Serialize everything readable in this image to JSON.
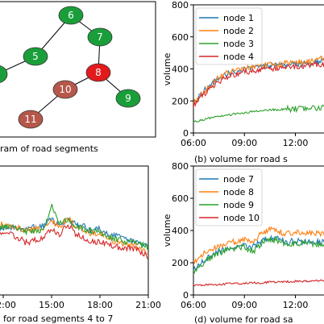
{
  "panel_a": {
    "caption": "ram of road segments",
    "nodes": [
      {
        "label": "6",
        "color": "#1a9e3a"
      },
      {
        "label": "7",
        "color": "#1a9e3a"
      },
      {
        "label": "5",
        "color": "#1a9e3a"
      },
      {
        "label": "8",
        "color": "#e31a1c"
      },
      {
        "label": "10",
        "color": "#b5574a"
      },
      {
        "label": "9",
        "color": "#1a9e3a"
      },
      {
        "label": "11",
        "color": "#b5574a"
      },
      {
        "label": "",
        "color": "#1a9e3a"
      }
    ]
  },
  "chart_data": [
    {
      "type": "line",
      "panel": "b",
      "caption": "(b) volume for road s",
      "ylabel": "volume",
      "ylim": [
        0,
        800
      ],
      "yticks": [
        "0",
        "200",
        "400",
        "600",
        "800"
      ],
      "xticks": [
        "06:00",
        "09:00",
        "12:00"
      ],
      "xlim_hours": [
        6,
        14.3
      ],
      "legend": "top-left",
      "series": [
        {
          "name": "node 1",
          "color": "#1f77b4",
          "points": [
            [
              6.0,
              190
            ],
            [
              6.5,
              250
            ],
            [
              7.0,
              300
            ],
            [
              7.5,
              340
            ],
            [
              8.0,
              370
            ],
            [
              8.5,
              385
            ],
            [
              9.0,
              395
            ],
            [
              9.5,
              405
            ],
            [
              10.0,
              410
            ],
            [
              10.5,
              420
            ],
            [
              11.0,
              425
            ],
            [
              11.5,
              430
            ],
            [
              12.0,
              430
            ],
            [
              12.5,
              435
            ],
            [
              13.0,
              440
            ],
            [
              13.5,
              450
            ],
            [
              14.0,
              455
            ]
          ]
        },
        {
          "name": "node 2",
          "color": "#ff7f0e",
          "points": [
            [
              6.0,
              185
            ],
            [
              6.5,
              245
            ],
            [
              7.0,
              295
            ],
            [
              7.5,
              345
            ],
            [
              8.0,
              375
            ],
            [
              8.5,
              395
            ],
            [
              9.0,
              405
            ],
            [
              9.5,
              415
            ],
            [
              10.0,
              420
            ],
            [
              10.5,
              425
            ],
            [
              11.0,
              430
            ],
            [
              11.5,
              440
            ],
            [
              12.0,
              445
            ],
            [
              12.5,
              440
            ],
            [
              13.0,
              450
            ],
            [
              13.5,
              465
            ],
            [
              14.0,
              480
            ]
          ]
        },
        {
          "name": "node 3",
          "color": "#2ca02c",
          "points": [
            [
              6.0,
              70
            ],
            [
              6.5,
              80
            ],
            [
              7.0,
              95
            ],
            [
              7.5,
              105
            ],
            [
              8.0,
              110
            ],
            [
              8.5,
              120
            ],
            [
              9.0,
              125
            ],
            [
              9.5,
              135
            ],
            [
              10.0,
              140
            ],
            [
              10.5,
              145
            ],
            [
              11.0,
              145
            ],
            [
              11.5,
              150
            ],
            [
              12.0,
              150
            ],
            [
              12.5,
              155
            ],
            [
              13.0,
              155
            ],
            [
              13.5,
              160
            ],
            [
              14.0,
              160
            ]
          ]
        },
        {
          "name": "node 4",
          "color": "#d62728",
          "points": [
            [
              6.0,
              170
            ],
            [
              6.5,
              230
            ],
            [
              7.0,
              280
            ],
            [
              7.5,
              320
            ],
            [
              8.0,
              350
            ],
            [
              8.5,
              370
            ],
            [
              9.0,
              380
            ],
            [
              9.5,
              390
            ],
            [
              10.0,
              395
            ],
            [
              10.5,
              400
            ],
            [
              11.0,
              405
            ],
            [
              11.5,
              410
            ],
            [
              12.0,
              410
            ],
            [
              12.5,
              415
            ],
            [
              13.0,
              420
            ],
            [
              13.5,
              430
            ],
            [
              14.0,
              440
            ]
          ]
        }
      ]
    },
    {
      "type": "line",
      "panel": "c",
      "caption": "for road segments 4 to 7",
      "xticks": [
        "12:00",
        "15:00",
        "18:00",
        "21:00"
      ],
      "xlim_hours": [
        11.7,
        21
      ],
      "ylim": [
        0,
        800
      ],
      "series": [
        {
          "name": "",
          "color": "#1f77b4",
          "points": [
            [
              11.7,
              420
            ],
            [
              12.5,
              420
            ],
            [
              13.5,
              410
            ],
            [
              14.5,
              430
            ],
            [
              15.0,
              470
            ],
            [
              15.5,
              430
            ],
            [
              16.0,
              470
            ],
            [
              16.5,
              440
            ],
            [
              17.0,
              430
            ],
            [
              17.5,
              400
            ],
            [
              18.0,
              410
            ],
            [
              18.5,
              380
            ],
            [
              19.0,
              370
            ],
            [
              19.5,
              350
            ],
            [
              20.0,
              340
            ],
            [
              20.5,
              320
            ],
            [
              21.0,
              300
            ]
          ]
        },
        {
          "name": "",
          "color": "#ff7f0e",
          "points": [
            [
              11.7,
              440
            ],
            [
              12.5,
              430
            ],
            [
              13.5,
              400
            ],
            [
              14.5,
              420
            ],
            [
              15.0,
              460
            ],
            [
              15.5,
              420
            ],
            [
              16.0,
              480
            ],
            [
              16.5,
              420
            ],
            [
              17.0,
              400
            ],
            [
              17.5,
              380
            ],
            [
              18.0,
              380
            ],
            [
              18.5,
              350
            ],
            [
              19.0,
              330
            ],
            [
              19.5,
              320
            ],
            [
              20.0,
              310
            ],
            [
              20.5,
              290
            ],
            [
              21.0,
              260
            ]
          ]
        },
        {
          "name": "",
          "color": "#2ca02c",
          "points": [
            [
              11.7,
              430
            ],
            [
              12.5,
              420
            ],
            [
              13.5,
              390
            ],
            [
              14.5,
              400
            ],
            [
              15.0,
              560
            ],
            [
              15.5,
              440
            ],
            [
              16.0,
              470
            ],
            [
              16.5,
              430
            ],
            [
              17.0,
              410
            ],
            [
              17.5,
              400
            ],
            [
              18.0,
              390
            ],
            [
              18.5,
              360
            ],
            [
              19.0,
              350
            ],
            [
              19.5,
              330
            ],
            [
              20.0,
              330
            ],
            [
              20.5,
              310
            ],
            [
              21.0,
              300
            ]
          ]
        },
        {
          "name": "",
          "color": "#d62728",
          "points": [
            [
              11.7,
              390
            ],
            [
              12.5,
              380
            ],
            [
              13.5,
              320
            ],
            [
              14.5,
              360
            ],
            [
              15.0,
              400
            ],
            [
              15.5,
              380
            ],
            [
              16.0,
              440
            ],
            [
              16.5,
              380
            ],
            [
              17.0,
              350
            ],
            [
              17.5,
              330
            ],
            [
              18.0,
              330
            ],
            [
              18.5,
              310
            ],
            [
              19.0,
              300
            ],
            [
              19.5,
              290
            ],
            [
              20.0,
              290
            ],
            [
              20.5,
              270
            ],
            [
              21.0,
              240
            ]
          ]
        }
      ]
    },
    {
      "type": "line",
      "panel": "d",
      "caption": "(d) volume for road sa",
      "ylabel": "volume",
      "ylim": [
        0,
        800
      ],
      "yticks": [
        "0",
        "200",
        "400",
        "600",
        "800"
      ],
      "xticks": [
        "06:00",
        "09:00",
        "12:00"
      ],
      "xlim_hours": [
        6,
        14.3
      ],
      "legend": "top-left",
      "series": [
        {
          "name": "node 7",
          "color": "#1f77b4",
          "points": [
            [
              6.0,
              160
            ],
            [
              6.5,
              200
            ],
            [
              7.0,
              240
            ],
            [
              7.5,
              270
            ],
            [
              8.0,
              290
            ],
            [
              8.5,
              300
            ],
            [
              9.0,
              310
            ],
            [
              9.5,
              300
            ],
            [
              10.0,
              330
            ],
            [
              10.5,
              360
            ],
            [
              11.0,
              345
            ],
            [
              11.5,
              330
            ],
            [
              12.0,
              335
            ],
            [
              12.5,
              330
            ],
            [
              13.0,
              330
            ],
            [
              13.5,
              330
            ],
            [
              14.0,
              330
            ]
          ]
        },
        {
          "name": "node 8",
          "color": "#ff7f0e",
          "points": [
            [
              6.0,
              200
            ],
            [
              6.5,
              250
            ],
            [
              7.0,
              280
            ],
            [
              7.5,
              300
            ],
            [
              8.0,
              320
            ],
            [
              8.5,
              330
            ],
            [
              9.0,
              340
            ],
            [
              9.5,
              340
            ],
            [
              10.0,
              380
            ],
            [
              10.5,
              410
            ],
            [
              11.0,
              390
            ],
            [
              11.5,
              380
            ],
            [
              12.0,
              390
            ],
            [
              12.5,
              380
            ],
            [
              13.0,
              380
            ],
            [
              13.5,
              380
            ],
            [
              14.0,
              385
            ]
          ]
        },
        {
          "name": "node 9",
          "color": "#2ca02c",
          "points": [
            [
              6.0,
              150
            ],
            [
              6.5,
              190
            ],
            [
              7.0,
              230
            ],
            [
              7.5,
              260
            ],
            [
              8.0,
              280
            ],
            [
              8.5,
              290
            ],
            [
              9.0,
              300
            ],
            [
              9.5,
              270
            ],
            [
              10.0,
              320
            ],
            [
              10.5,
              350
            ],
            [
              11.0,
              330
            ],
            [
              11.5,
              320
            ],
            [
              12.0,
              320
            ],
            [
              12.5,
              320
            ],
            [
              13.0,
              315
            ],
            [
              13.5,
              315
            ],
            [
              14.0,
              320
            ]
          ]
        },
        {
          "name": "node 10",
          "color": "#d62728",
          "points": [
            [
              6.0,
              60
            ],
            [
              6.5,
              62
            ],
            [
              7.0,
              65
            ],
            [
              7.5,
              65
            ],
            [
              8.0,
              70
            ],
            [
              8.5,
              70
            ],
            [
              9.0,
              72
            ],
            [
              9.5,
              75
            ],
            [
              10.0,
              75
            ],
            [
              10.5,
              80
            ],
            [
              11.0,
              80
            ],
            [
              11.5,
              82
            ],
            [
              12.0,
              85
            ],
            [
              12.5,
              85
            ],
            [
              13.0,
              85
            ],
            [
              13.5,
              90
            ],
            [
              14.0,
              90
            ]
          ]
        }
      ]
    }
  ]
}
